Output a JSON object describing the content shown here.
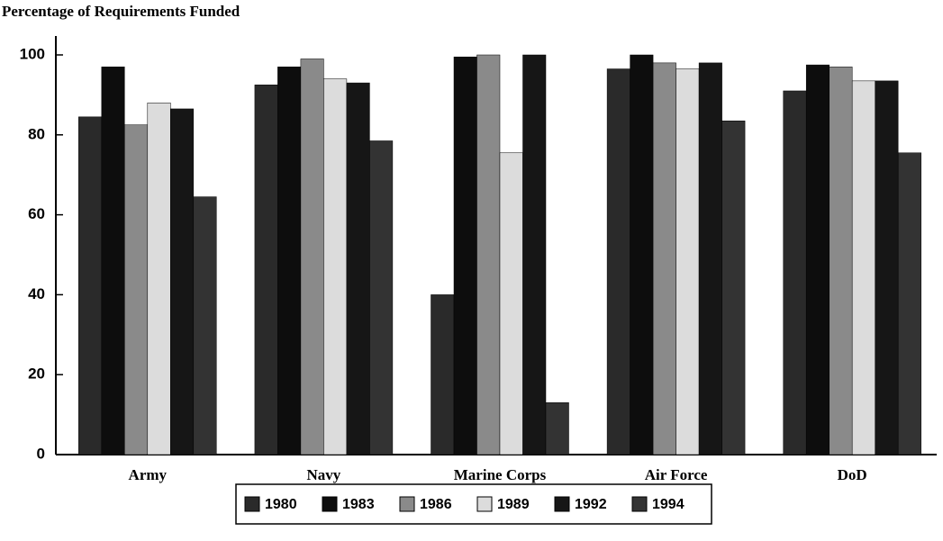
{
  "chart_data": {
    "type": "bar",
    "title": "Percentage of Requirements Funded",
    "categories": [
      "Army",
      "Navy",
      "Marine Corps",
      "Air Force",
      "DoD"
    ],
    "series": [
      {
        "name": "1980",
        "color": "#2a2a2a",
        "values": [
          84.5,
          92.5,
          40,
          96.5,
          91
        ]
      },
      {
        "name": "1983",
        "color": "#0d0d0d",
        "values": [
          97,
          97,
          99.5,
          100,
          97.5
        ]
      },
      {
        "name": "1986",
        "color": "#8a8a8a",
        "values": [
          82.5,
          99,
          100,
          98,
          97
        ]
      },
      {
        "name": "1989",
        "color": "#dcdcdc",
        "values": [
          88,
          94,
          75.5,
          96.5,
          93.5
        ]
      },
      {
        "name": "1992",
        "color": "#161616",
        "values": [
          86.5,
          93,
          100,
          98,
          93.5
        ]
      },
      {
        "name": "1994",
        "color": "#333333",
        "values": [
          64.5,
          78.5,
          13,
          83.5,
          75.5
        ]
      }
    ],
    "ylim": [
      0,
      100
    ],
    "yticks": [
      0,
      20,
      40,
      60,
      80,
      100
    ],
    "grid": false,
    "legend": "bottom"
  }
}
